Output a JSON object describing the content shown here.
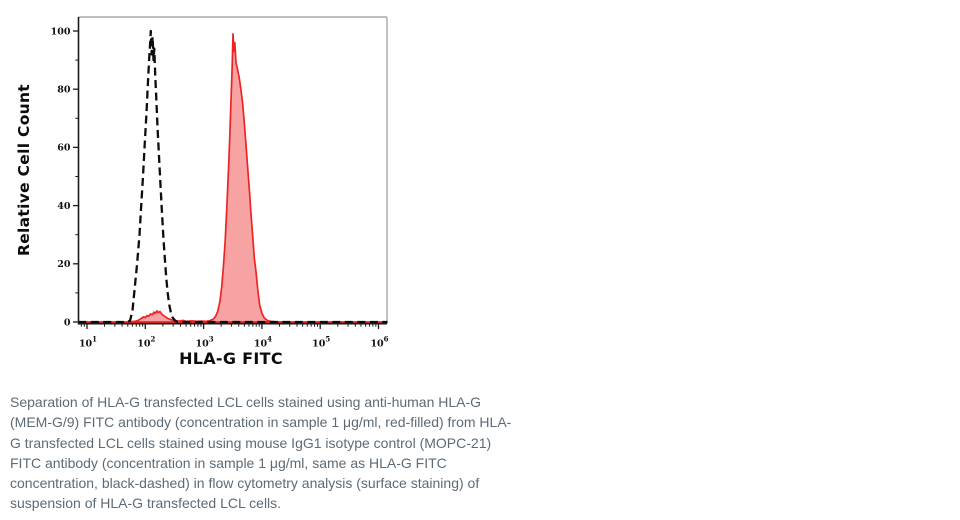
{
  "caption": {
    "text": "Separation of HLA-G transfected LCL cells stained using anti-human HLA-G (MEM-G/9) FITC antibody (concentration in sample 1 μg/ml, red-filled) from HLA-G transfected LCL cells stained using mouse IgG1 isotype control (MOPC-21) FITC antibody (concentration in sample 1 μg/ml, same as HLA-G FITC concentration, black-dashed) in flow cytometry analysis (surface staining) of suspension of HLA-G transfected LCL cells."
  },
  "colors": {
    "curve_red_stroke": "#ee2424",
    "curve_red_fill": "rgba(238,36,36,0.42)",
    "curve_black": "#0d0d0d",
    "axis_black": "#1a1a1a",
    "spine_gray": "#a8a8a8",
    "caption_gray": "#5c6b76"
  },
  "chart_data": {
    "type": "line",
    "title": "",
    "xlabel": "HLA-G FITC",
    "ylabel": "Relative Cell Count",
    "x_scale": "log10",
    "xlim_log10": [
      0.85,
      6.15
    ],
    "ylim": [
      0,
      100
    ],
    "grid": false,
    "legend": "none (identified in caption: red-filled = MEM-G/9 FITC, black-dashed = MOPC-21 isotype control)",
    "x_tick_exponents": [
      1,
      2,
      3,
      4,
      5,
      6
    ],
    "x_tick_labels": [
      "10¹",
      "10²",
      "10³",
      "10⁴",
      "10⁵",
      "10⁶"
    ],
    "y_ticks": [
      0,
      20,
      40,
      60,
      80,
      100
    ],
    "y_minor_ticks": [
      10,
      30,
      50,
      70,
      90
    ],
    "series": [
      {
        "name": "anti-human HLA-G (MEM-G/9) FITC — red-filled",
        "line_style": "solid",
        "stroke": "#ee2424",
        "fill": "rgba(238,36,36,0.42)",
        "points": [
          [
            0.85,
            0
          ],
          [
            1.2,
            0
          ],
          [
            1.5,
            0
          ],
          [
            1.7,
            0
          ],
          [
            1.82,
            0.2
          ],
          [
            1.88,
            0.6
          ],
          [
            1.93,
            1.2
          ],
          [
            1.97,
            1.8
          ],
          [
            2.0,
            1.5
          ],
          [
            2.03,
            2.2
          ],
          [
            2.06,
            2.0
          ],
          [
            2.09,
            2.8
          ],
          [
            2.12,
            2.5
          ],
          [
            2.15,
            3.4
          ],
          [
            2.17,
            2.9
          ],
          [
            2.2,
            3.8
          ],
          [
            2.22,
            3.2
          ],
          [
            2.25,
            3.6
          ],
          [
            2.28,
            2.8
          ],
          [
            2.31,
            2.2
          ],
          [
            2.35,
            1.7
          ],
          [
            2.39,
            1.2
          ],
          [
            2.44,
            0.8
          ],
          [
            2.5,
            0.5
          ],
          [
            2.57,
            0.3
          ],
          [
            2.65,
            0.5
          ],
          [
            2.72,
            0.2
          ],
          [
            2.8,
            0.4
          ],
          [
            2.88,
            0.2
          ],
          [
            2.96,
            0.3
          ],
          [
            3.04,
            0.2
          ],
          [
            3.1,
            0.4
          ],
          [
            3.16,
            0.9
          ],
          [
            3.2,
            1.8
          ],
          [
            3.24,
            3.5
          ],
          [
            3.28,
            7
          ],
          [
            3.31,
            12
          ],
          [
            3.34,
            19
          ],
          [
            3.37,
            28
          ],
          [
            3.4,
            40
          ],
          [
            3.43,
            54
          ],
          [
            3.45,
            64
          ],
          [
            3.47,
            76
          ],
          [
            3.49,
            88
          ],
          [
            3.505,
            99
          ],
          [
            3.52,
            93
          ],
          [
            3.535,
            96
          ],
          [
            3.555,
            89
          ],
          [
            3.58,
            87
          ],
          [
            3.61,
            84
          ],
          [
            3.64,
            80
          ],
          [
            3.67,
            75
          ],
          [
            3.7,
            68
          ],
          [
            3.73,
            60
          ],
          [
            3.76,
            52
          ],
          [
            3.79,
            44
          ],
          [
            3.81,
            38
          ],
          [
            3.84,
            30
          ],
          [
            3.87,
            22
          ],
          [
            3.9,
            17
          ],
          [
            3.93,
            11
          ],
          [
            3.96,
            6
          ],
          [
            4.0,
            3
          ],
          [
            4.04,
            1.4
          ],
          [
            4.09,
            0.6
          ],
          [
            4.15,
            0.25
          ],
          [
            4.22,
            0.1
          ],
          [
            4.35,
            0
          ],
          [
            4.7,
            0
          ],
          [
            5.1,
            0
          ],
          [
            5.5,
            0
          ],
          [
            5.9,
            0
          ],
          [
            6.15,
            0
          ]
        ]
      },
      {
        "name": "mouse IgG1 isotype control (MOPC-21) FITC — black-dashed",
        "line_style": "dashed",
        "stroke": "#0d0d0d",
        "fill": "none",
        "points": [
          [
            0.85,
            0
          ],
          [
            1.2,
            0
          ],
          [
            1.5,
            0
          ],
          [
            1.7,
            0
          ],
          [
            1.74,
            0.5
          ],
          [
            1.78,
            4
          ],
          [
            1.82,
            12
          ],
          [
            1.86,
            20
          ],
          [
            1.9,
            30
          ],
          [
            1.93,
            40
          ],
          [
            1.96,
            50
          ],
          [
            1.99,
            61
          ],
          [
            2.02,
            72
          ],
          [
            2.045,
            82
          ],
          [
            2.065,
            90
          ],
          [
            2.08,
            95
          ],
          [
            2.095,
            100
          ],
          [
            2.11,
            92
          ],
          [
            2.125,
            98
          ],
          [
            2.14,
            90
          ],
          [
            2.155,
            94
          ],
          [
            2.17,
            85
          ],
          [
            2.19,
            76
          ],
          [
            2.21,
            67
          ],
          [
            2.235,
            57
          ],
          [
            2.26,
            47
          ],
          [
            2.285,
            38
          ],
          [
            2.31,
            29
          ],
          [
            2.335,
            22
          ],
          [
            2.36,
            15
          ],
          [
            2.385,
            10
          ],
          [
            2.41,
            6
          ],
          [
            2.44,
            3
          ],
          [
            2.47,
            1.5
          ],
          [
            2.51,
            0.5
          ],
          [
            2.55,
            0
          ],
          [
            2.8,
            0
          ],
          [
            3.2,
            0
          ],
          [
            3.6,
            0
          ],
          [
            4.0,
            0
          ],
          [
            4.5,
            0
          ],
          [
            5.0,
            0
          ],
          [
            5.5,
            0
          ],
          [
            6.15,
            0
          ]
        ]
      }
    ]
  }
}
